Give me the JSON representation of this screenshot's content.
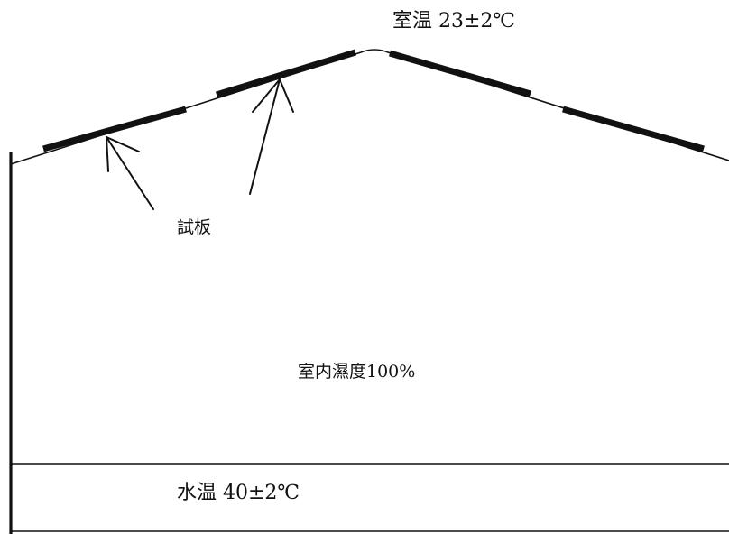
{
  "labels": {
    "room_temperature": "室温 23±2℃",
    "test_plate": "試板",
    "humidity": "室内濕度100%",
    "water_temperature": "水温 40±2℃"
  },
  "colors": {
    "line": "#111111",
    "background": "#ffffff"
  }
}
